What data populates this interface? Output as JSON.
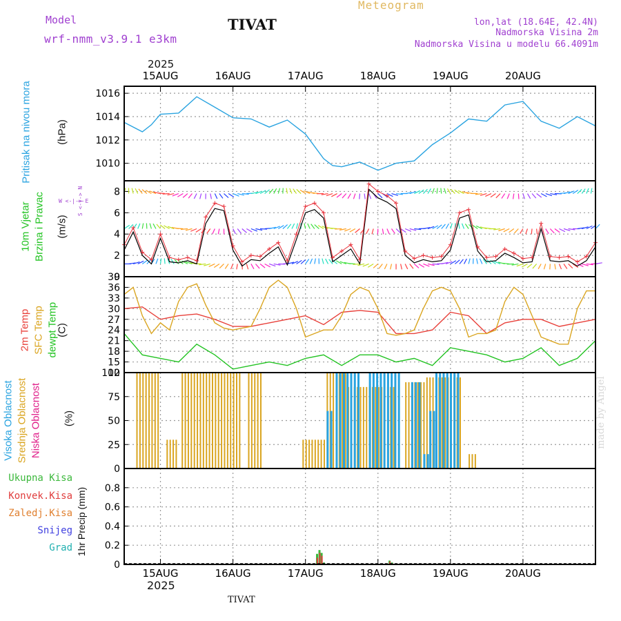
{
  "header": {
    "model_label": "Model",
    "model_name": "wrf-nmm_v3.9.1 e3km",
    "station": "TIVAT",
    "meteogram": "Meteogram",
    "lonlat": "lon,lat (18.64E, 42.4N)",
    "altitude": "Nadmorska Visina 2m",
    "model_altitude": "Nadmorska Visina u modelu 66.4091m",
    "footer_station": "TIVAT",
    "watermark": "made by Angel",
    "year_top": "2025",
    "year_bottom": "2025"
  },
  "colors": {
    "pressure": "#29a3e0",
    "wind_speed": "#000000",
    "gust": "#e8303a",
    "temp2m": "#e8403a",
    "sfc_temp": "#daa520",
    "dewpoint": "#22c322",
    "high_cloud": "#29a3e0",
    "mid_cloud": "#daa520",
    "low_cloud": "#e0208a",
    "total_precip": "#3cb83c",
    "conv_precip": "#e03c3c",
    "frozen_precip": "#e08030",
    "snow": "#4040e0",
    "hail": "#20b0b0",
    "wind_panel_label": "#22c322",
    "axis_purple": "#a040d0"
  },
  "chart_data": [
    {
      "type": "line",
      "panel": "pressure",
      "title": "Pritisak na nivou mora",
      "ylabel": "(hPa)",
      "ylim": [
        1008.5,
        1016.6
      ],
      "yticks": [
        "1016",
        "1014",
        "1012",
        "1010"
      ],
      "ytick_values": [
        1016,
        1014,
        1012,
        1010
      ],
      "x_hours": [
        0,
        6,
        9,
        12,
        18,
        24,
        30,
        36,
        42,
        48,
        54,
        60,
        66,
        69,
        72,
        78,
        84,
        90,
        96,
        102,
        108,
        114,
        120,
        126,
        132,
        138,
        144,
        150,
        156
      ],
      "values": [
        1013.5,
        1012.7,
        1013.3,
        1014.2,
        1014.3,
        1015.7,
        1014.8,
        1013.9,
        1013.8,
        1013.1,
        1013.7,
        1012.5,
        1010.4,
        1009.8,
        1009.7,
        1010.1,
        1009.4,
        1010.0,
        1010.2,
        1011.6,
        1012.6,
        1013.8,
        1013.6,
        1015.0,
        1015.3,
        1013.6,
        1013.0,
        1014.0,
        1013.2
      ]
    },
    {
      "type": "line",
      "panel": "wind",
      "title_lines": [
        "10m Vjetar",
        "Brzina i Pravac"
      ],
      "ylabel": "(m/s)",
      "direction_legend": "W <-|-> E",
      "direction_legend_v": "S <-|-> N",
      "ylim": [
        0,
        9
      ],
      "yticks": [
        "8",
        "6",
        "4",
        "2",
        "0"
      ],
      "ytick_values": [
        8,
        6,
        4,
        2,
        0
      ],
      "series": [
        {
          "name": "wind speed",
          "x_hours": [
            0,
            3,
            6,
            9,
            12,
            15,
            18,
            21,
            24,
            27,
            30,
            33,
            36,
            39,
            42,
            45,
            48,
            51,
            54,
            57,
            60,
            63,
            66,
            69,
            72,
            75,
            78,
            81,
            84,
            87,
            90,
            93,
            96,
            99,
            102,
            105,
            108,
            111,
            114,
            117,
            120,
            123,
            126,
            129,
            132,
            135,
            138,
            141,
            144,
            147,
            150,
            153,
            156
          ],
          "values": [
            2.5,
            4.2,
            2.0,
            1.2,
            3.6,
            1.4,
            1.3,
            1.5,
            1.2,
            5.0,
            6.4,
            6.2,
            2.5,
            1.0,
            1.6,
            1.5,
            2.2,
            2.8,
            1.1,
            3.5,
            6.0,
            6.3,
            5.5,
            1.4,
            2.0,
            2.6,
            1.2,
            8.2,
            7.4,
            7.0,
            6.4,
            2.0,
            1.3,
            1.6,
            1.4,
            1.5,
            2.5,
            5.5,
            5.8,
            2.4,
            1.4,
            1.5,
            2.2,
            1.8,
            1.3,
            1.4,
            4.5,
            1.5,
            1.4,
            1.5,
            1.0,
            1.5,
            2.8
          ]
        },
        {
          "name": "gusts",
          "x_hours": [
            0,
            3,
            6,
            9,
            12,
            15,
            18,
            21,
            24,
            27,
            30,
            33,
            36,
            39,
            42,
            45,
            48,
            51,
            54,
            57,
            60,
            63,
            66,
            69,
            72,
            75,
            78,
            81,
            84,
            87,
            90,
            93,
            96,
            99,
            102,
            105,
            108,
            111,
            114,
            117,
            120,
            123,
            126,
            129,
            132,
            135,
            138,
            141,
            144,
            147,
            150,
            153,
            156
          ],
          "values": [
            3.0,
            4.6,
            2.3,
            1.6,
            4.0,
            1.8,
            1.6,
            1.8,
            1.5,
            5.6,
            6.9,
            6.6,
            2.9,
            1.4,
            2.0,
            1.9,
            2.6,
            3.2,
            1.5,
            4.0,
            6.6,
            6.9,
            6.0,
            1.8,
            2.4,
            3.0,
            1.6,
            8.7,
            8.0,
            7.6,
            6.9,
            2.4,
            1.7,
            2.0,
            1.8,
            1.9,
            3.0,
            6.0,
            6.3,
            2.8,
            1.8,
            1.9,
            2.6,
            2.2,
            1.7,
            1.8,
            5.0,
            1.9,
            1.8,
            1.9,
            1.4,
            1.9,
            3.2
          ]
        }
      ],
      "arrow_rows": [
        1.2,
        4.5,
        7.8
      ]
    },
    {
      "type": "line",
      "panel": "temperature",
      "title_lines": [
        "2m Temp",
        "SFC Temp",
        "dewpt Temp"
      ],
      "ylabel": "(C)",
      "ylim": [
        12,
        39
      ],
      "yticks": [
        "39",
        "36",
        "33",
        "30",
        "27",
        "24",
        "21",
        "18",
        "15",
        "12"
      ],
      "ytick_values": [
        39,
        36,
        33,
        30,
        27,
        24,
        21,
        18,
        15,
        12
      ],
      "series": [
        {
          "name": "2m Temp",
          "x_hours": [
            0,
            6,
            12,
            18,
            24,
            30,
            36,
            42,
            48,
            54,
            60,
            66,
            72,
            78,
            84,
            90,
            96,
            102,
            108,
            114,
            120,
            126,
            132,
            138,
            144,
            150,
            156
          ],
          "values": [
            30,
            30.5,
            27,
            28,
            28.5,
            27,
            25,
            25,
            26,
            27,
            28,
            25.5,
            29,
            29.5,
            29,
            23,
            23,
            24,
            29,
            28,
            23,
            26,
            27,
            27,
            25,
            26,
            27
          ]
        },
        {
          "name": "SFC Temp",
          "x_hours": [
            0,
            3,
            6,
            9,
            12,
            15,
            18,
            21,
            24,
            27,
            30,
            33,
            36,
            39,
            42,
            45,
            48,
            51,
            54,
            57,
            60,
            63,
            66,
            69,
            72,
            75,
            78,
            81,
            84,
            87,
            90,
            93,
            96,
            99,
            102,
            105,
            108,
            111,
            114,
            117,
            120,
            123,
            126,
            129,
            132,
            135,
            138,
            141,
            144,
            147,
            150,
            153,
            156
          ],
          "values": [
            34,
            36,
            28,
            23,
            26,
            24,
            32,
            36,
            37,
            31,
            26,
            24.5,
            24,
            24.5,
            25,
            30,
            36,
            38,
            36,
            30,
            22,
            23,
            24,
            24,
            28,
            34,
            36,
            35,
            30,
            23,
            22.5,
            23,
            24,
            30,
            35,
            36,
            35,
            30,
            22,
            23,
            23,
            24,
            32,
            36,
            34,
            28,
            22,
            21,
            20,
            20,
            30,
            35,
            35
          ]
        },
        {
          "name": "dewpt Temp",
          "x_hours": [
            0,
            6,
            12,
            18,
            24,
            30,
            36,
            42,
            48,
            54,
            60,
            66,
            72,
            78,
            84,
            90,
            96,
            102,
            108,
            114,
            120,
            126,
            132,
            138,
            144,
            150,
            156
          ],
          "values": [
            23,
            17,
            16,
            15,
            20,
            17,
            13,
            14,
            15,
            14,
            16,
            17,
            14,
            17,
            17,
            15,
            16,
            14,
            19,
            18,
            17,
            15,
            16,
            19,
            14,
            16,
            21
          ]
        }
      ]
    },
    {
      "type": "bar",
      "panel": "cloud",
      "title_lines": [
        "Visoka Oblacnost",
        "Srednja Oblacnost",
        "Niska Oblacnost"
      ],
      "ylabel": "(%)",
      "ylim": [
        0,
        100
      ],
      "yticks": [
        "100",
        "75",
        "50",
        "25",
        "0"
      ],
      "ytick_values": [
        100,
        75,
        50,
        25,
        0
      ],
      "mid_segments": [
        {
          "from": 4,
          "to": 12,
          "value": 100
        },
        {
          "from": 14,
          "to": 18,
          "value": 30
        },
        {
          "from": 19,
          "to": 39,
          "value": 100
        },
        {
          "from": 41,
          "to": 46,
          "value": 100
        },
        {
          "from": 59,
          "to": 67,
          "value": 30
        },
        {
          "from": 67,
          "to": 74,
          "value": 100
        },
        {
          "from": 74,
          "to": 90,
          "value": 85
        },
        {
          "from": 93,
          "to": 100,
          "value": 90
        },
        {
          "from": 100,
          "to": 112,
          "value": 95
        },
        {
          "from": 114,
          "to": 117,
          "value": 15
        }
      ],
      "high_segments": [
        {
          "from": 67,
          "to": 69,
          "value": 60
        },
        {
          "from": 70,
          "to": 78,
          "value": 100
        },
        {
          "from": 81,
          "to": 86,
          "value": 100
        },
        {
          "from": 87,
          "to": 91,
          "value": 100
        },
        {
          "from": 95,
          "to": 98,
          "value": 90
        },
        {
          "from": 99,
          "to": 101,
          "value": 15
        },
        {
          "from": 101,
          "to": 103,
          "value": 60
        },
        {
          "from": 103,
          "to": 111,
          "value": 100
        }
      ]
    },
    {
      "type": "bar",
      "panel": "precip",
      "title_lines": [
        "Ukupna Kisa",
        "Konvek.Kisa",
        "Zaledj.Kisa",
        "Snijeg",
        "Grad"
      ],
      "ylabel": "1hr Precip (mm)",
      "ylim": [
        0,
        1.0
      ],
      "yticks": [
        "0.8",
        "0.6",
        "0.4",
        "0.2",
        "0"
      ],
      "ytick_values": [
        0.8,
        0.6,
        0.4,
        0.2,
        0
      ],
      "bars": [
        {
          "hour": 63.5,
          "total": 0.11,
          "conv": 0.07
        },
        {
          "hour": 64.3,
          "total": 0.15,
          "conv": 0.12
        },
        {
          "hour": 65.0,
          "total": 0.12,
          "conv": 0.09
        },
        {
          "hour": 65.8,
          "total": 0.02,
          "conv": 0.01
        },
        {
          "hour": 87.5,
          "total": 0.04,
          "conv": 0.03
        },
        {
          "hour": 88.3,
          "total": 0.02,
          "conv": 0.01
        }
      ]
    }
  ],
  "x_axis": {
    "hours_total": 156,
    "day_labels": [
      "15AUG",
      "16AUG",
      "17AUG",
      "18AUG",
      "19AUG",
      "20AUG"
    ],
    "day_hours": [
      12,
      36,
      60,
      84,
      108,
      132
    ]
  }
}
